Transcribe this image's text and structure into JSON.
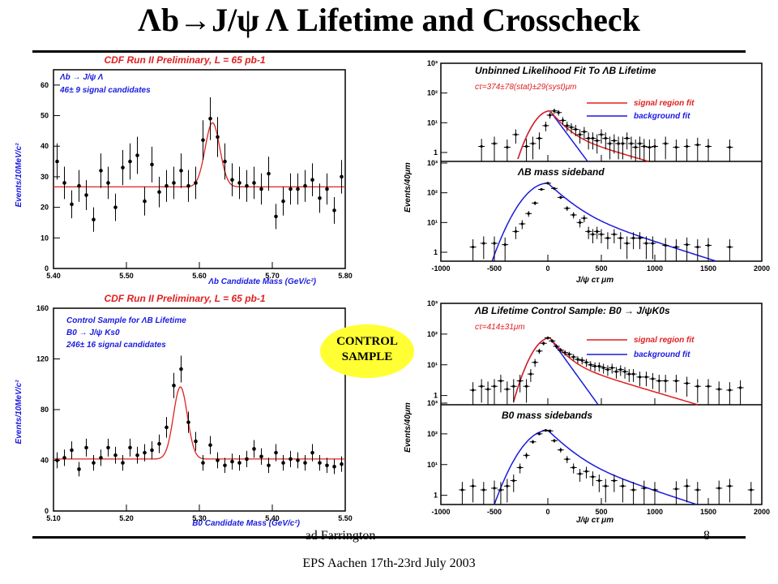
{
  "slide": {
    "title": "Λb→J/ψ Λ Lifetime and Crosscheck",
    "author": "ad Farrington",
    "event": "EPS Aachen 17th-23rd July 2003",
    "page": "8",
    "badge": [
      "CONTROL",
      "SAMPLE"
    ]
  },
  "colors": {
    "red": "#e02020",
    "blue": "#1a1ae0",
    "frame": "#000000",
    "badge": "#ffff33"
  },
  "chart_data": [
    {
      "id": "lambda-mass",
      "type": "scatter",
      "title": "CDF Run II Preliminary, L = 65 pb-1",
      "xlabel": "Λb Candidate Mass (GeV/c²)",
      "ylabel": "Events/10MeV/c²",
      "annotations": [
        "Λb → J/ψ Λ",
        "46± 9 signal candidates"
      ],
      "xlim": [
        5.4,
        5.8
      ],
      "ylim": [
        0,
        65
      ],
      "xticks": [
        5.4,
        5.5,
        5.6,
        5.7,
        5.8
      ],
      "xtick_labels": [
        "5.40",
        "5.50",
        "5.60",
        "5.70",
        "5.80"
      ],
      "yticks": [
        0,
        10,
        20,
        30,
        40,
        50,
        60
      ],
      "x": [
        5.405,
        5.415,
        5.425,
        5.435,
        5.445,
        5.455,
        5.465,
        5.475,
        5.485,
        5.495,
        5.505,
        5.515,
        5.525,
        5.535,
        5.545,
        5.555,
        5.565,
        5.575,
        5.585,
        5.595,
        5.605,
        5.615,
        5.625,
        5.635,
        5.645,
        5.655,
        5.665,
        5.675,
        5.685,
        5.695,
        5.705,
        5.715,
        5.725,
        5.735,
        5.745,
        5.755,
        5.765,
        5.775,
        5.785,
        5.795
      ],
      "y": [
        35,
        28,
        21,
        27,
        24,
        16,
        32,
        28,
        20,
        33,
        35,
        37,
        22,
        34,
        25,
        27,
        28,
        32,
        27,
        28,
        42,
        49,
        43,
        35,
        29,
        28,
        27,
        28,
        26,
        31,
        17,
        22,
        26,
        26,
        27,
        29,
        23,
        26,
        19,
        30
      ],
      "fit": {
        "baseline": 26.7,
        "mean": 5.618,
        "sigma": 0.01,
        "amplitude": 21
      }
    },
    {
      "id": "lambda-lifetime",
      "type": "scatter",
      "title": "Unbinned Likelihood Fit To ΛB Lifetime",
      "annotations": [
        "cτ=374±78(stat)±29(syst)μm"
      ],
      "legend": [
        "signal region fit",
        "background fit"
      ],
      "xlabel": "J/ψ cτ μm",
      "ylabel": "Events/40μm",
      "subtitle": "ΛB mass sideband",
      "xlim": [
        -1000,
        2000
      ],
      "xticks": [
        -1000,
        -500,
        0,
        500,
        1000,
        1500,
        2000
      ],
      "ytick_labels": [
        "1",
        "10¹",
        "10²",
        "10³"
      ],
      "top": {
        "x": [
          -620,
          -500,
          -380,
          -300,
          -200,
          -140,
          -80,
          -20,
          20,
          60,
          100,
          140,
          180,
          220,
          260,
          300,
          340,
          380,
          420,
          460,
          500,
          540,
          580,
          620,
          660,
          700,
          740,
          780,
          820,
          860,
          900,
          950,
          1000,
          1100,
          1200,
          1300,
          1400,
          1500,
          1700
        ],
        "y": [
          1.6,
          2,
          1.5,
          4,
          1.6,
          2,
          3,
          8,
          18,
          25,
          22,
          12,
          8,
          7,
          6,
          4,
          5,
          3,
          3,
          2.5,
          4,
          3,
          2,
          2.5,
          2,
          2,
          3,
          2,
          1.5,
          2,
          1.6,
          1.5,
          1.6,
          2,
          1.5,
          1.6,
          1.8,
          1.6,
          1.5
        ]
      },
      "bottom": {
        "x": [
          -700,
          -600,
          -500,
          -400,
          -300,
          -240,
          -180,
          -120,
          -60,
          0,
          60,
          120,
          180,
          240,
          300,
          340,
          380,
          420,
          460,
          500,
          560,
          620,
          680,
          740,
          800,
          860,
          920,
          980,
          1100,
          1200,
          1300,
          1400,
          1500,
          1700
        ],
        "y": [
          1.5,
          2,
          2,
          1.8,
          5,
          9,
          20,
          45,
          130,
          210,
          140,
          70,
          30,
          18,
          10,
          14,
          5,
          4,
          5,
          4,
          3,
          4,
          3,
          2,
          3,
          3,
          2,
          2,
          1.7,
          1.5,
          1.8,
          1.5,
          1.7,
          1.5
        ]
      }
    },
    {
      "id": "b0-mass",
      "type": "scatter",
      "title": "CDF Run II Preliminary, L = 65 pb-1",
      "xlabel": "B0 Candidate Mass (GeV/c²)",
      "ylabel": "Events/10MeV/c²",
      "annotations": [
        "Control Sample for ΛB Lifetime",
        "B0 → J/ψ Ks0",
        "246± 16 signal candidates"
      ],
      "xlim": [
        5.1,
        5.5
      ],
      "ylim": [
        0,
        160
      ],
      "xticks": [
        5.1,
        5.2,
        5.3,
        5.4,
        5.5
      ],
      "xtick_labels": [
        "5.10",
        "5.20",
        "5.30",
        "5.40",
        "5.50"
      ],
      "yticks": [
        0,
        40,
        80,
        120,
        160
      ],
      "x": [
        5.105,
        5.115,
        5.125,
        5.135,
        5.145,
        5.155,
        5.165,
        5.175,
        5.185,
        5.195,
        5.205,
        5.215,
        5.225,
        5.235,
        5.245,
        5.255,
        5.265,
        5.275,
        5.285,
        5.295,
        5.305,
        5.315,
        5.325,
        5.335,
        5.345,
        5.355,
        5.365,
        5.375,
        5.385,
        5.395,
        5.405,
        5.415,
        5.425,
        5.435,
        5.445,
        5.455,
        5.465,
        5.475,
        5.485,
        5.495
      ],
      "y": [
        40,
        42,
        48,
        33,
        50,
        38,
        42,
        50,
        44,
        38,
        50,
        44,
        46,
        48,
        53,
        66,
        99,
        112,
        70,
        55,
        38,
        52,
        40,
        36,
        39,
        38,
        41,
        49,
        43,
        36,
        46,
        38,
        41,
        40,
        38,
        46,
        38,
        36,
        35,
        37
      ],
      "fit": {
        "baseline": 41,
        "mean": 5.274,
        "sigma": 0.0095,
        "amplitude": 57
      }
    },
    {
      "id": "b0-lifetime",
      "type": "scatter",
      "title": "ΛB Lifetime Control Sample: B0 → J/ψK0s",
      "annotations": [
        "cτ=414±31μm"
      ],
      "legend": [
        "signal region fit",
        "background fit"
      ],
      "xlabel": "J/ψ cτ μm",
      "ylabel": "Events/40μm",
      "subtitle": "B0 mass sidebands",
      "xlim": [
        -1000,
        2000
      ],
      "xticks": [
        -1000,
        -500,
        0,
        500,
        1000,
        1500,
        2000
      ],
      "ytick_labels": [
        "1",
        "10¹",
        "10²",
        "10³"
      ],
      "top": {
        "x": [
          -700,
          -620,
          -560,
          -500,
          -440,
          -380,
          -320,
          -260,
          -200,
          -160,
          -120,
          -80,
          -40,
          0,
          40,
          80,
          120,
          160,
          200,
          240,
          280,
          320,
          360,
          400,
          440,
          480,
          520,
          560,
          600,
          640,
          680,
          720,
          760,
          800,
          860,
          920,
          980,
          1040,
          1100,
          1200,
          1300,
          1400,
          1500,
          1600,
          1700,
          1800
        ],
        "y": [
          1.5,
          2,
          1.6,
          2,
          3,
          1.6,
          2,
          3,
          2,
          5,
          12,
          28,
          50,
          75,
          60,
          40,
          30,
          25,
          22,
          18,
          15,
          14,
          12,
          10,
          9,
          9,
          8,
          7,
          8,
          6,
          7,
          6,
          5,
          5,
          4,
          4,
          3.5,
          3,
          3,
          3,
          2.5,
          2,
          2,
          1.6,
          1.5,
          1.8
        ]
      },
      "bottom": {
        "x": [
          -800,
          -700,
          -600,
          -500,
          -440,
          -380,
          -320,
          -260,
          -200,
          -140,
          -80,
          -20,
          20,
          60,
          120,
          180,
          240,
          300,
          360,
          420,
          480,
          540,
          620,
          700,
          800,
          900,
          1000,
          1200,
          1300,
          1400,
          1600,
          1700,
          1900
        ],
        "y": [
          1.5,
          2,
          1.5,
          1.7,
          1.5,
          2,
          3,
          8,
          20,
          55,
          100,
          130,
          125,
          60,
          30,
          15,
          8,
          5,
          6,
          4,
          3,
          2,
          3,
          2,
          1.5,
          1.7,
          1.5,
          1.6,
          2,
          1.5,
          1.7,
          2,
          1.5
        ]
      }
    }
  ]
}
